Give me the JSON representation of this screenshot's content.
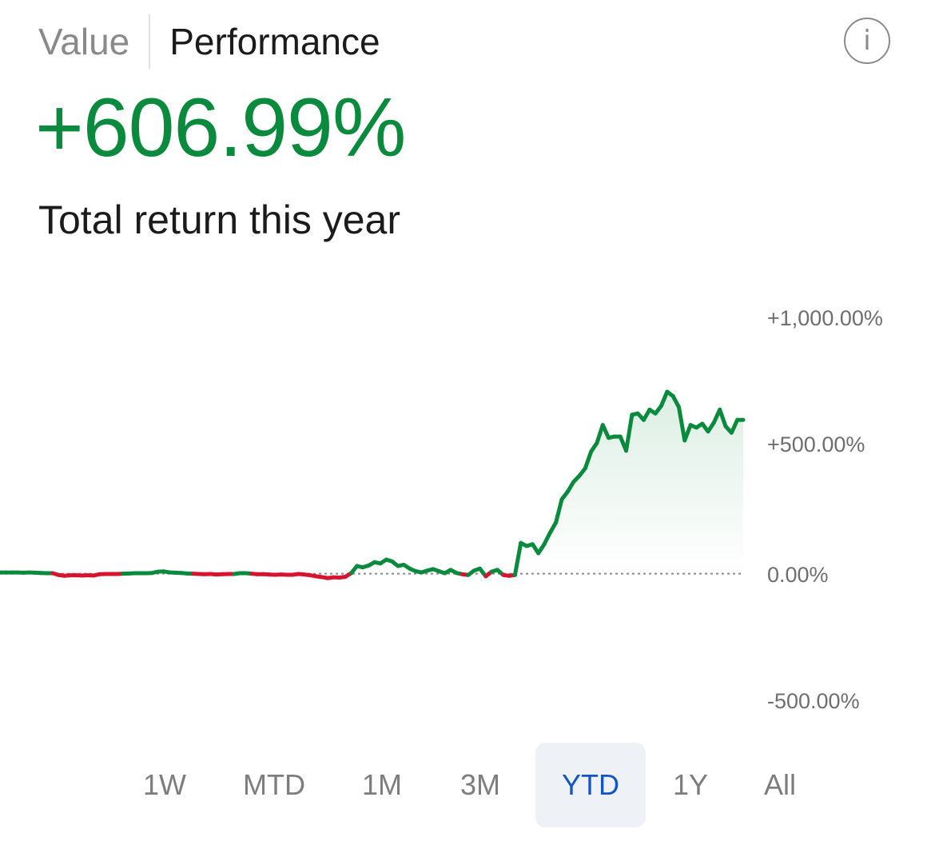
{
  "tabs": [
    {
      "label": "Value",
      "active": false
    },
    {
      "label": "Performance",
      "active": true
    }
  ],
  "info_icon": {
    "name": "info-icon",
    "glyph": "i"
  },
  "headline": {
    "value": "+606.99%",
    "color": "#0a8a3c"
  },
  "subtitle": "Total return this year",
  "chart_data": {
    "type": "line",
    "y_unit": "%",
    "ylim": [
      -500,
      1000
    ],
    "y_ticks": [
      {
        "value": 1000,
        "label": "+1,000.00%"
      },
      {
        "value": 500,
        "label": "+500.00%"
      },
      {
        "value": 0,
        "label": "0.00%"
      },
      {
        "value": -500,
        "label": "-500.00%"
      }
    ],
    "baseline": 0,
    "colors": {
      "positive": "#0a8a3c",
      "negative": "#d7132e",
      "baseline": "#8a8a8a"
    },
    "values": [
      5,
      5,
      5,
      5,
      4,
      5,
      4,
      3,
      2,
      2,
      -5,
      -8,
      -6,
      -6,
      -7,
      -6,
      -7,
      -2,
      -1,
      -1,
      -1,
      0,
      1,
      2,
      2,
      2,
      3,
      8,
      9,
      5,
      4,
      3,
      1,
      0,
      -1,
      -2,
      -1,
      -3,
      -2,
      -1,
      -1,
      2,
      2,
      0,
      -2,
      -2,
      -3,
      -4,
      -3,
      -4,
      -4,
      -1,
      -3,
      -6,
      -10,
      -13,
      -17,
      -14,
      -15,
      -12,
      2,
      30,
      25,
      32,
      45,
      40,
      55,
      48,
      30,
      35,
      20,
      10,
      5,
      12,
      18,
      10,
      2,
      15,
      3,
      -2,
      -5,
      12,
      20,
      -10,
      8,
      15,
      -5,
      -8,
      -5,
      120,
      108,
      115,
      80,
      115,
      160,
      200,
      290,
      320,
      358,
      382,
      411,
      476,
      510,
      580,
      530,
      535,
      535,
      480,
      620,
      625,
      600,
      640,
      625,
      655,
      710,
      693,
      650,
      520,
      580,
      570,
      585,
      555,
      590,
      640,
      575,
      550,
      600,
      600
    ]
  },
  "ranges": [
    {
      "label": "1W",
      "active": false
    },
    {
      "label": "MTD",
      "active": false
    },
    {
      "label": "1M",
      "active": false
    },
    {
      "label": "3M",
      "active": false
    },
    {
      "label": "YTD",
      "active": true
    },
    {
      "label": "1Y",
      "active": false
    },
    {
      "label": "All",
      "active": false
    }
  ]
}
